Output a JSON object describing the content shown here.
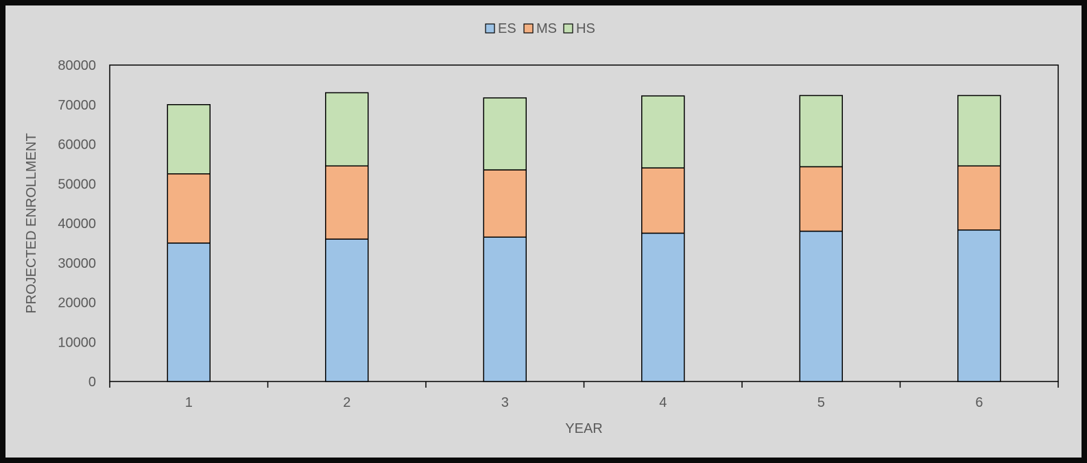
{
  "chart_data": {
    "type": "bar",
    "stacked": true,
    "categories": [
      "1",
      "2",
      "3",
      "4",
      "5",
      "6"
    ],
    "series": [
      {
        "name": "ES",
        "values": [
          35000,
          36000,
          36500,
          37500,
          38000,
          38300
        ],
        "color": "#9dc3e6"
      },
      {
        "name": "MS",
        "values": [
          17500,
          18500,
          17000,
          16500,
          16300,
          16200
        ],
        "color": "#f4b183"
      },
      {
        "name": "HS",
        "values": [
          17500,
          18500,
          18200,
          18200,
          18000,
          17800
        ],
        "color": "#c5e0b4"
      }
    ],
    "xlabel": "YEAR",
    "ylabel": "PROJECTED ENROLLMENT",
    "ylim": [
      0,
      80000
    ],
    "yticks": [
      0,
      10000,
      20000,
      30000,
      40000,
      50000,
      60000,
      70000,
      80000
    ],
    "legend_position": "top",
    "grid": false,
    "background": "#d9d9d9",
    "border_color": "#0a0a0a"
  }
}
